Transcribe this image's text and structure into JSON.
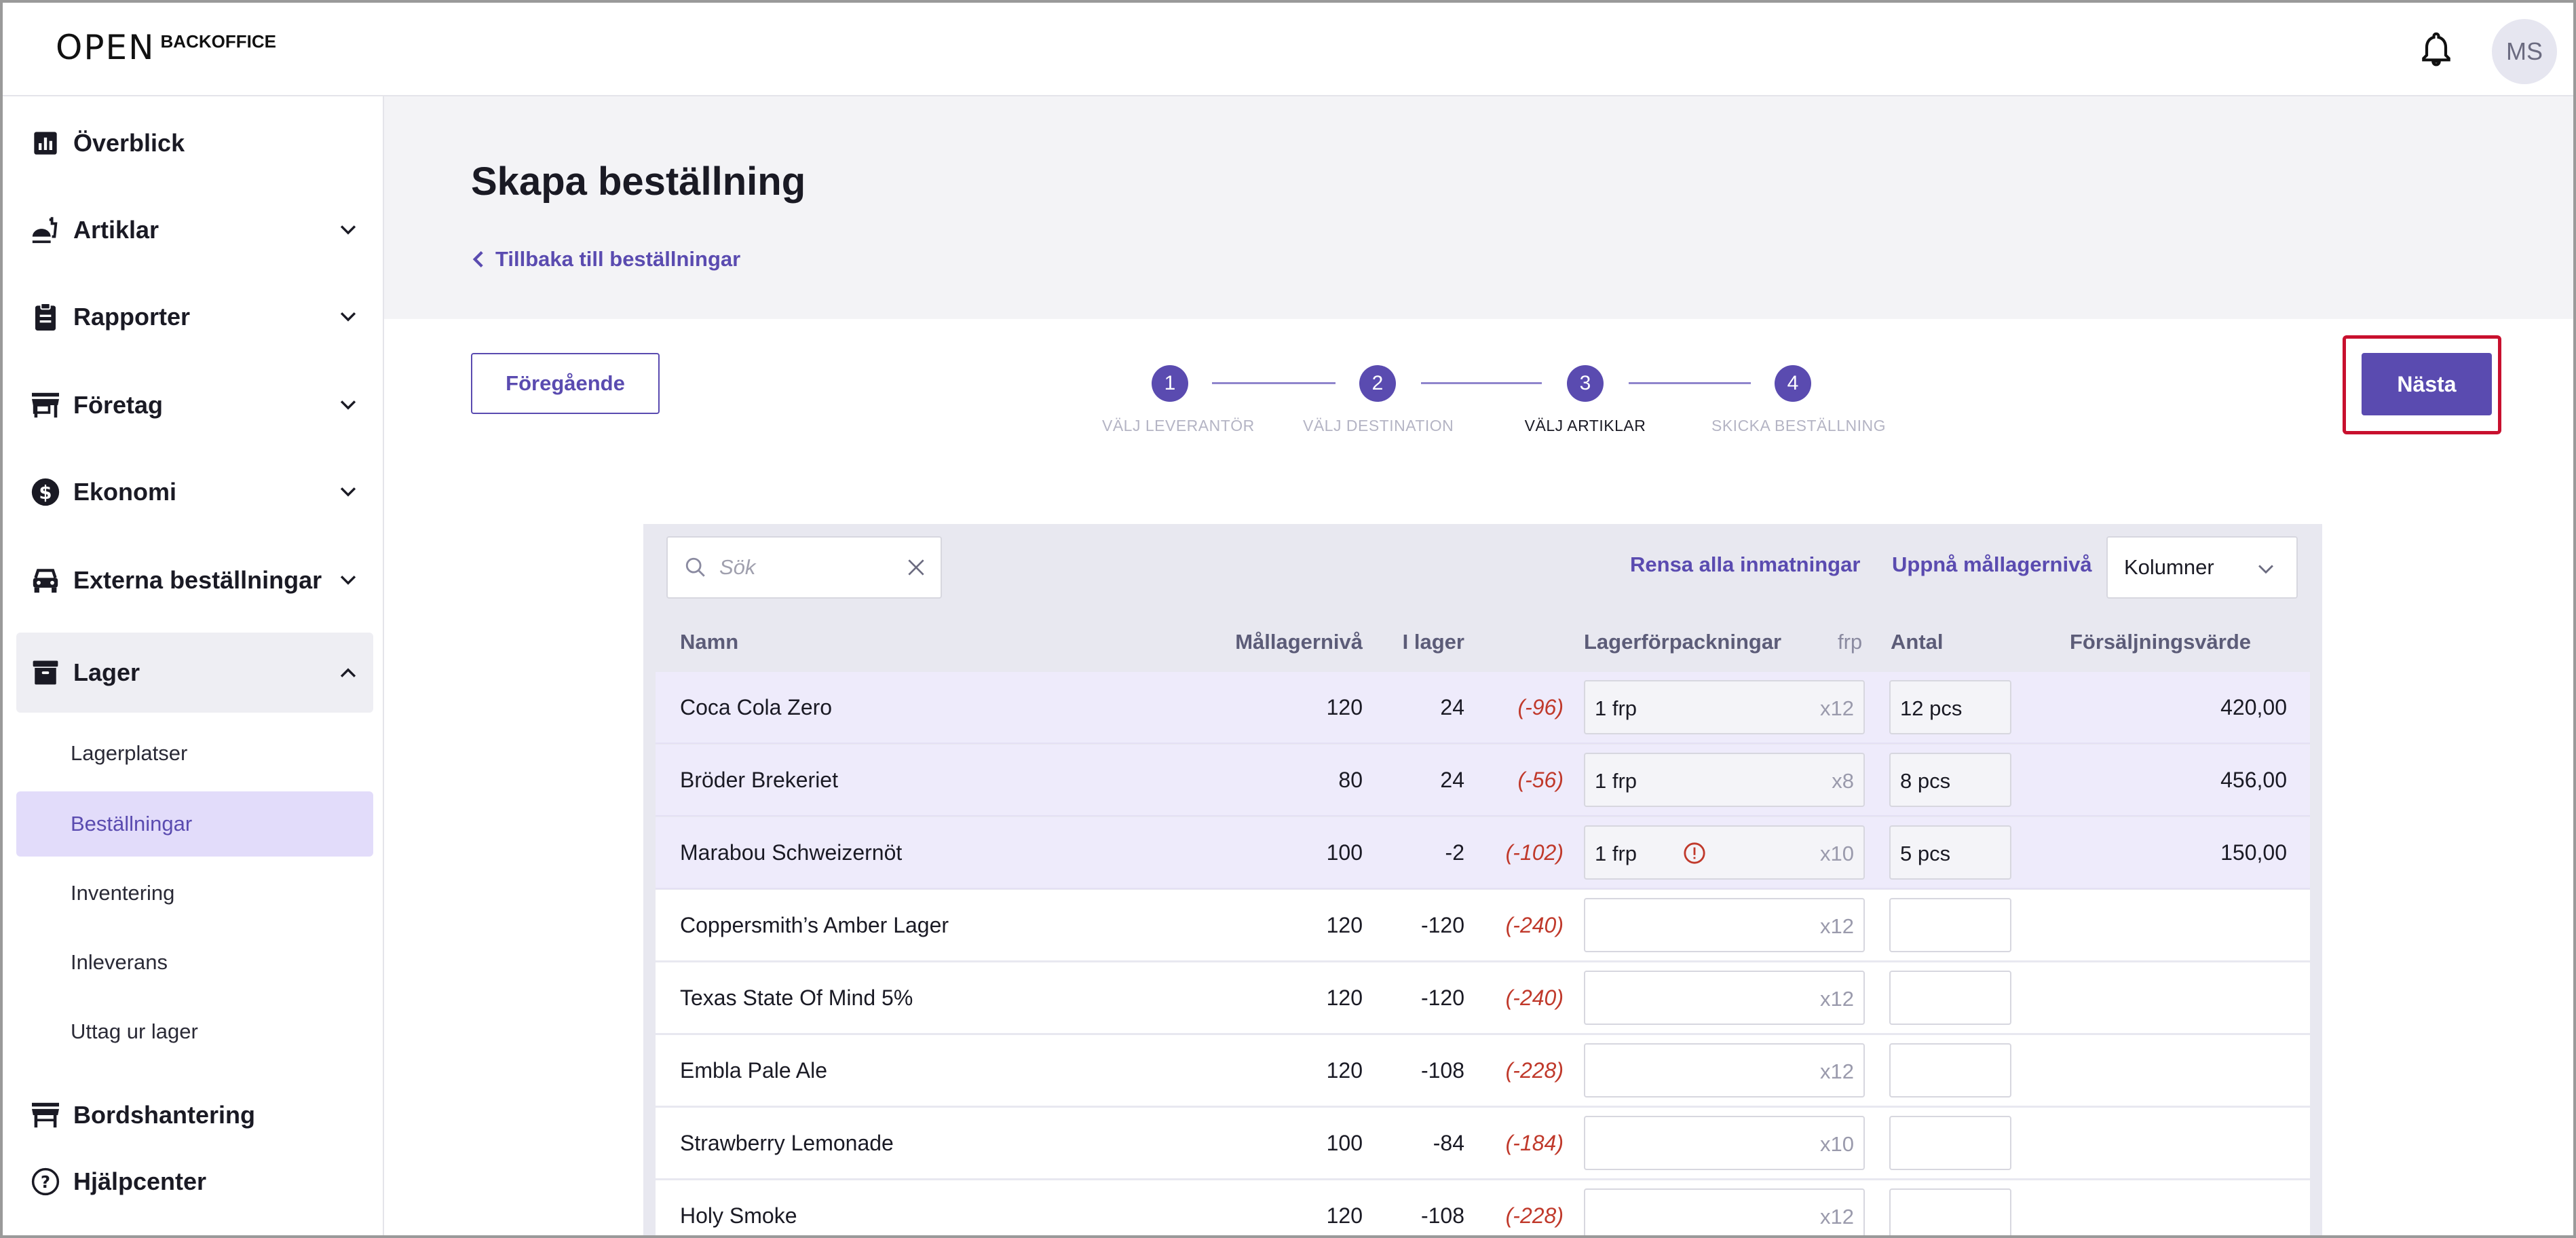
{
  "app": {
    "logo_mark": "OPEN",
    "logo_text": "BACKOFFICE",
    "avatar_initials": "MS"
  },
  "sidebar": {
    "items": [
      {
        "label": "Överblick",
        "icon": "chart-icon"
      },
      {
        "label": "Artiklar",
        "icon": "food-icon"
      },
      {
        "label": "Rapporter",
        "icon": "clipboard-icon"
      },
      {
        "label": "Företag",
        "icon": "store-icon"
      },
      {
        "label": "Ekonomi",
        "icon": "dollar-icon"
      },
      {
        "label": "Externa beställningar",
        "icon": "car-icon"
      },
      {
        "label": "Lager",
        "icon": "archive-icon"
      },
      {
        "label": "Bordshantering",
        "icon": "table-icon"
      },
      {
        "label": "Hjälpcenter",
        "icon": "help-icon"
      }
    ],
    "lager_sub": [
      "Lagerplatser",
      "Beställningar",
      "Inventering",
      "Inleverans",
      "Uttag ur lager"
    ],
    "active_sub": "Beställningar"
  },
  "page": {
    "title": "Skapa beställning",
    "back_link": "Tillbaka till beställningar",
    "prev_button": "Föregående",
    "next_button": "Nästa"
  },
  "stepper": {
    "current": 3,
    "steps": [
      {
        "number": "1",
        "label": "VÄLJ LEVERANTÖR"
      },
      {
        "number": "2",
        "label": "VÄLJ DESTINATION"
      },
      {
        "number": "3",
        "label": "VÄLJ ARTIKLAR"
      },
      {
        "number": "4",
        "label": "SKICKA BESTÄLLNING"
      }
    ]
  },
  "toolbar": {
    "search_placeholder": "Sök",
    "clear_all": "Rensa alla inmatningar",
    "reach_target": "Uppnå mållagernivå",
    "columns": "Kolumner"
  },
  "table": {
    "headers": {
      "name": "Namn",
      "target": "Mållagernivå",
      "in_stock": "I lager",
      "packages": "Lagerförpackningar",
      "unit": "frp",
      "quantity": "Antal",
      "sales_value": "Försäljningsvärde"
    },
    "rows": [
      {
        "name": "Coca Cola Zero",
        "target": "120",
        "stock": "24",
        "diff": "(-96)",
        "pack": "1 frp",
        "mult": "x12",
        "qty": "12 pcs",
        "value": "420,00",
        "warn": false
      },
      {
        "name": "Bröder Brekeriet",
        "target": "80",
        "stock": "24",
        "diff": "(-56)",
        "pack": "1 frp",
        "mult": "x8",
        "qty": "8 pcs",
        "value": "456,00",
        "warn": false
      },
      {
        "name": "Marabou Schweizernöt",
        "target": "100",
        "stock": "-2",
        "diff": "(-102)",
        "pack": "1 frp",
        "mult": "x10",
        "qty": "5 pcs",
        "value": "150,00",
        "warn": true
      },
      {
        "name": "Coppersmith’s Amber Lager",
        "target": "120",
        "stock": "-120",
        "diff": "(-240)",
        "pack": "",
        "mult": "x12",
        "qty": "",
        "value": "",
        "warn": false
      },
      {
        "name": "Texas State Of Mind 5%",
        "target": "120",
        "stock": "-120",
        "diff": "(-240)",
        "pack": "",
        "mult": "x12",
        "qty": "",
        "value": "",
        "warn": false
      },
      {
        "name": "Embla Pale Ale",
        "target": "120",
        "stock": "-108",
        "diff": "(-228)",
        "pack": "",
        "mult": "x12",
        "qty": "",
        "value": "",
        "warn": false
      },
      {
        "name": "Strawberry Lemonade",
        "target": "100",
        "stock": "-84",
        "diff": "(-184)",
        "pack": "",
        "mult": "x10",
        "qty": "",
        "value": "",
        "warn": false
      },
      {
        "name": "Holy Smoke",
        "target": "120",
        "stock": "-108",
        "diff": "(-228)",
        "pack": "",
        "mult": "x12",
        "qty": "",
        "value": "",
        "warn": false
      }
    ]
  },
  "colors": {
    "accent": "#5a4bb0",
    "negative": "#c0392b",
    "highlight": "#c8102e"
  }
}
